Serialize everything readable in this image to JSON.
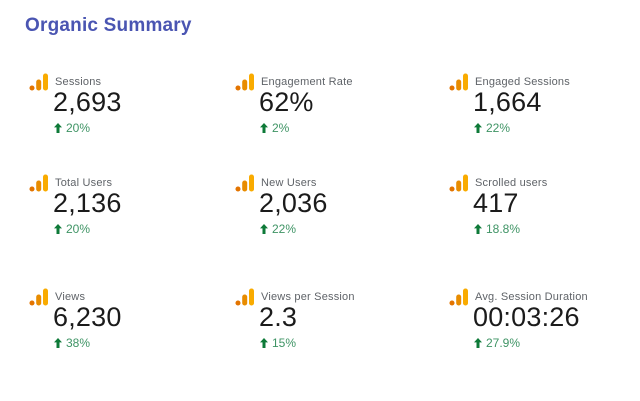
{
  "page": {
    "title": "Organic Summary",
    "title_color": "#4a55b2",
    "background": "#ffffff"
  },
  "icon": {
    "name": "analytics-bars-icon",
    "colors": {
      "dot": "#e37400",
      "mid_bar": "#e88c00",
      "tall_bar": "#f9ab00"
    }
  },
  "delta_style": {
    "direction": "up",
    "arrow_icon": "arrow-up-icon",
    "arrow_color": "#0e7a38",
    "text_color": "#3f9465"
  },
  "cards": [
    {
      "label": "Sessions",
      "value": "2,693",
      "delta": "20%"
    },
    {
      "label": "Engagement Rate",
      "value": "62%",
      "delta": "2%"
    },
    {
      "label": "Engaged Sessions",
      "value": "1,664",
      "delta": "22%"
    },
    {
      "label": "Total Users",
      "value": "2,136",
      "delta": "20%"
    },
    {
      "label": "New Users",
      "value": "2,036",
      "delta": "22%"
    },
    {
      "label": "Scrolled users",
      "value": "417",
      "delta": "18.8%"
    },
    {
      "label": "Views",
      "value": "6,230",
      "delta": "38%"
    },
    {
      "label": "Views per Session",
      "value": "2.3",
      "delta": "15%"
    },
    {
      "label": "Avg. Session Duration",
      "value": "00:03:26",
      "delta": "27.9%"
    }
  ]
}
